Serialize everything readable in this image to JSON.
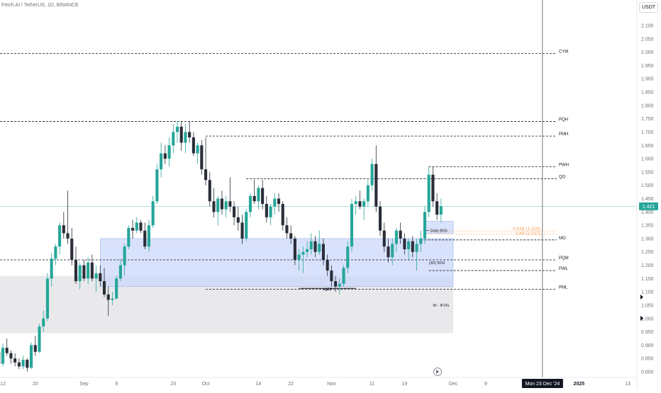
{
  "title": "Fetch.AI / TetherUS, 1D, BINANCE",
  "quote_currency": "USDT",
  "colors": {
    "up": "#26a69a",
    "down": "#2a2e39",
    "level": "#131722",
    "fib": "#f7a35c",
    "zone_blue": "#c9d6fb",
    "zone_gray": "#e3e4e7",
    "last_price": "#26a69a"
  },
  "chart_data": {
    "type": "candlestick",
    "title": "Fetch.AI / TetherUS, 1D, BINANCE",
    "y_ticks": [
      "2.100",
      "2.050",
      "2.000",
      "1.950",
      "1.900",
      "1.850",
      "1.800",
      "1.750",
      "1.700",
      "1.650",
      "1.600",
      "1.550",
      "1.500",
      "1.450",
      "1.400",
      "1.350",
      "1.300",
      "1.250",
      "1.200",
      "1.150",
      "1.100",
      "1.050",
      "1.000",
      "0.950",
      "0.900",
      "0.850",
      "0.800"
    ],
    "x_ticks": [
      {
        "label": "12",
        "date": "2024-08-12"
      },
      {
        "label": "20",
        "date": "2024-08-20"
      },
      {
        "label": "Sep",
        "date": "2024-09-01"
      },
      {
        "label": "9",
        "date": "2024-09-09"
      },
      {
        "label": "23",
        "date": "2024-09-23"
      },
      {
        "label": "Oct",
        "date": "2024-10-01"
      },
      {
        "label": "14",
        "date": "2024-10-14"
      },
      {
        "label": "22",
        "date": "2024-10-22"
      },
      {
        "label": "Nov",
        "date": "2024-11-01"
      },
      {
        "label": "11",
        "date": "2024-11-11"
      },
      {
        "label": "19",
        "date": "2024-11-19"
      },
      {
        "label": "Dec",
        "date": "2024-12-01"
      },
      {
        "label": "9",
        "date": "2024-12-09"
      },
      {
        "label": "2025",
        "date": "2025-01-01"
      },
      {
        "label": "13",
        "date": "2025-01-13"
      }
    ],
    "x_range": [
      "2024-08-12",
      "2025-01-13"
    ],
    "y_range": [
      0.79,
      2.125
    ],
    "last_price": "1.421",
    "crosshair": {
      "date": "2024-12-23",
      "label": "Mon 23 Dec '24"
    },
    "candles": [
      {
        "d": "2024-08-11",
        "o": 0.875,
        "h": 0.89,
        "l": 0.81,
        "c": 0.83
      },
      {
        "d": "2024-08-12",
        "o": 0.83,
        "h": 0.905,
        "l": 0.82,
        "c": 0.89
      },
      {
        "d": "2024-08-13",
        "o": 0.89,
        "h": 0.925,
        "l": 0.86,
        "c": 0.87
      },
      {
        "d": "2024-08-14",
        "o": 0.87,
        "h": 0.88,
        "l": 0.83,
        "c": 0.85
      },
      {
        "d": "2024-08-15",
        "o": 0.85,
        "h": 0.87,
        "l": 0.82,
        "c": 0.835
      },
      {
        "d": "2024-08-16",
        "o": 0.835,
        "h": 0.85,
        "l": 0.81,
        "c": 0.82
      },
      {
        "d": "2024-08-17",
        "o": 0.82,
        "h": 0.86,
        "l": 0.81,
        "c": 0.845
      },
      {
        "d": "2024-08-18",
        "o": 0.845,
        "h": 0.85,
        "l": 0.8,
        "c": 0.815
      },
      {
        "d": "2024-08-19",
        "o": 0.815,
        "h": 0.91,
        "l": 0.81,
        "c": 0.9
      },
      {
        "d": "2024-08-20",
        "o": 0.9,
        "h": 0.935,
        "l": 0.86,
        "c": 0.875
      },
      {
        "d": "2024-08-21",
        "o": 0.875,
        "h": 0.98,
        "l": 0.87,
        "c": 0.97
      },
      {
        "d": "2024-08-22",
        "o": 0.97,
        "h": 1.03,
        "l": 0.95,
        "c": 1.0
      },
      {
        "d": "2024-08-23",
        "o": 1.0,
        "h": 1.17,
        "l": 0.99,
        "c": 1.15
      },
      {
        "d": "2024-08-24",
        "o": 1.15,
        "h": 1.245,
        "l": 1.12,
        "c": 1.225
      },
      {
        "d": "2024-08-25",
        "o": 1.225,
        "h": 1.28,
        "l": 1.2,
        "c": 1.27
      },
      {
        "d": "2024-08-26",
        "o": 1.27,
        "h": 1.36,
        "l": 1.24,
        "c": 1.35
      },
      {
        "d": "2024-08-27",
        "o": 1.35,
        "h": 1.4,
        "l": 1.3,
        "c": 1.32
      },
      {
        "d": "2024-08-28",
        "o": 1.32,
        "h": 1.48,
        "l": 1.28,
        "c": 1.3
      },
      {
        "d": "2024-08-29",
        "o": 1.3,
        "h": 1.34,
        "l": 1.2,
        "c": 1.22
      },
      {
        "d": "2024-08-30",
        "o": 1.22,
        "h": 1.27,
        "l": 1.13,
        "c": 1.14
      },
      {
        "d": "2024-08-31",
        "o": 1.14,
        "h": 1.21,
        "l": 1.11,
        "c": 1.2
      },
      {
        "d": "2024-09-01",
        "o": 1.2,
        "h": 1.22,
        "l": 1.14,
        "c": 1.15
      },
      {
        "d": "2024-09-02",
        "o": 1.15,
        "h": 1.23,
        "l": 1.13,
        "c": 1.21
      },
      {
        "d": "2024-09-03",
        "o": 1.21,
        "h": 1.24,
        "l": 1.14,
        "c": 1.15
      },
      {
        "d": "2024-09-04",
        "o": 1.15,
        "h": 1.2,
        "l": 1.1,
        "c": 1.17
      },
      {
        "d": "2024-09-05",
        "o": 1.17,
        "h": 1.2,
        "l": 1.12,
        "c": 1.14
      },
      {
        "d": "2024-09-06",
        "o": 1.14,
        "h": 1.19,
        "l": 1.08,
        "c": 1.09
      },
      {
        "d": "2024-09-07",
        "o": 1.09,
        "h": 1.12,
        "l": 1.01,
        "c": 1.07
      },
      {
        "d": "2024-09-08",
        "o": 1.07,
        "h": 1.1,
        "l": 1.05,
        "c": 1.075
      },
      {
        "d": "2024-09-09",
        "o": 1.075,
        "h": 1.16,
        "l": 1.07,
        "c": 1.15
      },
      {
        "d": "2024-09-10",
        "o": 1.15,
        "h": 1.22,
        "l": 1.14,
        "c": 1.2
      },
      {
        "d": "2024-09-11",
        "o": 1.2,
        "h": 1.28,
        "l": 1.16,
        "c": 1.27
      },
      {
        "d": "2024-09-12",
        "o": 1.27,
        "h": 1.35,
        "l": 1.26,
        "c": 1.34
      },
      {
        "d": "2024-09-13",
        "o": 1.34,
        "h": 1.37,
        "l": 1.3,
        "c": 1.33
      },
      {
        "d": "2024-09-14",
        "o": 1.33,
        "h": 1.38,
        "l": 1.32,
        "c": 1.36
      },
      {
        "d": "2024-09-15",
        "o": 1.36,
        "h": 1.37,
        "l": 1.32,
        "c": 1.33
      },
      {
        "d": "2024-09-16",
        "o": 1.33,
        "h": 1.36,
        "l": 1.26,
        "c": 1.27
      },
      {
        "d": "2024-09-17",
        "o": 1.27,
        "h": 1.37,
        "l": 1.25,
        "c": 1.35
      },
      {
        "d": "2024-09-18",
        "o": 1.35,
        "h": 1.46,
        "l": 1.34,
        "c": 1.44
      },
      {
        "d": "2024-09-19",
        "o": 1.44,
        "h": 1.58,
        "l": 1.43,
        "c": 1.56
      },
      {
        "d": "2024-09-20",
        "o": 1.56,
        "h": 1.66,
        "l": 1.53,
        "c": 1.62
      },
      {
        "d": "2024-09-21",
        "o": 1.62,
        "h": 1.65,
        "l": 1.58,
        "c": 1.6
      },
      {
        "d": "2024-09-22",
        "o": 1.6,
        "h": 1.68,
        "l": 1.57,
        "c": 1.65
      },
      {
        "d": "2024-09-23",
        "o": 1.65,
        "h": 1.73,
        "l": 1.62,
        "c": 1.7
      },
      {
        "d": "2024-09-24",
        "o": 1.7,
        "h": 1.74,
        "l": 1.66,
        "c": 1.72
      },
      {
        "d": "2024-09-25",
        "o": 1.72,
        "h": 1.74,
        "l": 1.63,
        "c": 1.66
      },
      {
        "d": "2024-09-26",
        "o": 1.66,
        "h": 1.73,
        "l": 1.62,
        "c": 1.7
      },
      {
        "d": "2024-09-27",
        "o": 1.7,
        "h": 1.74,
        "l": 1.66,
        "c": 1.68
      },
      {
        "d": "2024-09-28",
        "o": 1.68,
        "h": 1.7,
        "l": 1.61,
        "c": 1.62
      },
      {
        "d": "2024-09-29",
        "o": 1.62,
        "h": 1.66,
        "l": 1.58,
        "c": 1.65
      },
      {
        "d": "2024-09-30",
        "o": 1.65,
        "h": 1.67,
        "l": 1.54,
        "c": 1.56
      },
      {
        "d": "2024-10-01",
        "o": 1.56,
        "h": 1.68,
        "l": 1.5,
        "c": 1.52
      },
      {
        "d": "2024-10-02",
        "o": 1.52,
        "h": 1.55,
        "l": 1.42,
        "c": 1.44
      },
      {
        "d": "2024-10-03",
        "o": 1.44,
        "h": 1.49,
        "l": 1.38,
        "c": 1.4
      },
      {
        "d": "2024-10-04",
        "o": 1.4,
        "h": 1.46,
        "l": 1.35,
        "c": 1.45
      },
      {
        "d": "2024-10-05",
        "o": 1.45,
        "h": 1.48,
        "l": 1.39,
        "c": 1.41
      },
      {
        "d": "2024-10-06",
        "o": 1.41,
        "h": 1.46,
        "l": 1.38,
        "c": 1.44
      },
      {
        "d": "2024-10-07",
        "o": 1.44,
        "h": 1.53,
        "l": 1.4,
        "c": 1.42
      },
      {
        "d": "2024-10-08",
        "o": 1.42,
        "h": 1.44,
        "l": 1.35,
        "c": 1.38
      },
      {
        "d": "2024-10-09",
        "o": 1.38,
        "h": 1.42,
        "l": 1.33,
        "c": 1.36
      },
      {
        "d": "2024-10-10",
        "o": 1.36,
        "h": 1.39,
        "l": 1.28,
        "c": 1.3
      },
      {
        "d": "2024-10-11",
        "o": 1.3,
        "h": 1.41,
        "l": 1.29,
        "c": 1.4
      },
      {
        "d": "2024-10-12",
        "o": 1.4,
        "h": 1.47,
        "l": 1.38,
        "c": 1.46
      },
      {
        "d": "2024-10-13",
        "o": 1.46,
        "h": 1.52,
        "l": 1.43,
        "c": 1.44
      },
      {
        "d": "2024-10-14",
        "o": 1.44,
        "h": 1.5,
        "l": 1.41,
        "c": 1.49
      },
      {
        "d": "2024-10-15",
        "o": 1.49,
        "h": 1.52,
        "l": 1.41,
        "c": 1.43
      },
      {
        "d": "2024-10-16",
        "o": 1.43,
        "h": 1.46,
        "l": 1.36,
        "c": 1.38
      },
      {
        "d": "2024-10-17",
        "o": 1.38,
        "h": 1.43,
        "l": 1.35,
        "c": 1.42
      },
      {
        "d": "2024-10-18",
        "o": 1.42,
        "h": 1.47,
        "l": 1.39,
        "c": 1.45
      },
      {
        "d": "2024-10-19",
        "o": 1.45,
        "h": 1.47,
        "l": 1.4,
        "c": 1.43
      },
      {
        "d": "2024-10-20",
        "o": 1.43,
        "h": 1.44,
        "l": 1.33,
        "c": 1.35
      },
      {
        "d": "2024-10-21",
        "o": 1.35,
        "h": 1.38,
        "l": 1.3,
        "c": 1.32
      },
      {
        "d": "2024-10-22",
        "o": 1.32,
        "h": 1.35,
        "l": 1.28,
        "c": 1.3
      },
      {
        "d": "2024-10-23",
        "o": 1.3,
        "h": 1.31,
        "l": 1.2,
        "c": 1.22
      },
      {
        "d": "2024-10-24",
        "o": 1.22,
        "h": 1.26,
        "l": 1.18,
        "c": 1.24
      },
      {
        "d": "2024-10-25",
        "o": 1.24,
        "h": 1.27,
        "l": 1.17,
        "c": 1.25
      },
      {
        "d": "2024-10-26",
        "o": 1.25,
        "h": 1.29,
        "l": 1.23,
        "c": 1.26
      },
      {
        "d": "2024-10-27",
        "o": 1.26,
        "h": 1.32,
        "l": 1.24,
        "c": 1.29
      },
      {
        "d": "2024-10-28",
        "o": 1.29,
        "h": 1.31,
        "l": 1.23,
        "c": 1.25
      },
      {
        "d": "2024-10-29",
        "o": 1.25,
        "h": 1.33,
        "l": 1.24,
        "c": 1.28
      },
      {
        "d": "2024-10-30",
        "o": 1.28,
        "h": 1.3,
        "l": 1.2,
        "c": 1.22
      },
      {
        "d": "2024-10-31",
        "o": 1.22,
        "h": 1.24,
        "l": 1.16,
        "c": 1.18
      },
      {
        "d": "2024-11-01",
        "o": 1.18,
        "h": 1.2,
        "l": 1.12,
        "c": 1.14
      },
      {
        "d": "2024-11-02",
        "o": 1.14,
        "h": 1.16,
        "l": 1.1,
        "c": 1.12
      },
      {
        "d": "2024-11-03",
        "o": 1.12,
        "h": 1.15,
        "l": 1.09,
        "c": 1.13
      },
      {
        "d": "2024-11-04",
        "o": 1.13,
        "h": 1.2,
        "l": 1.12,
        "c": 1.19
      },
      {
        "d": "2024-11-05",
        "o": 1.19,
        "h": 1.29,
        "l": 1.17,
        "c": 1.27
      },
      {
        "d": "2024-11-06",
        "o": 1.27,
        "h": 1.45,
        "l": 1.25,
        "c": 1.43
      },
      {
        "d": "2024-11-07",
        "o": 1.43,
        "h": 1.46,
        "l": 1.39,
        "c": 1.44
      },
      {
        "d": "2024-11-08",
        "o": 1.44,
        "h": 1.48,
        "l": 1.41,
        "c": 1.42
      },
      {
        "d": "2024-11-09",
        "o": 1.42,
        "h": 1.45,
        "l": 1.37,
        "c": 1.44
      },
      {
        "d": "2024-11-10",
        "o": 1.44,
        "h": 1.52,
        "l": 1.42,
        "c": 1.5
      },
      {
        "d": "2024-11-11",
        "o": 1.5,
        "h": 1.6,
        "l": 1.48,
        "c": 1.58
      },
      {
        "d": "2024-11-12",
        "o": 1.58,
        "h": 1.65,
        "l": 1.4,
        "c": 1.42
      },
      {
        "d": "2024-11-13",
        "o": 1.42,
        "h": 1.44,
        "l": 1.31,
        "c": 1.33
      },
      {
        "d": "2024-11-14",
        "o": 1.33,
        "h": 1.36,
        "l": 1.25,
        "c": 1.27
      },
      {
        "d": "2024-11-15",
        "o": 1.27,
        "h": 1.3,
        "l": 1.21,
        "c": 1.23
      },
      {
        "d": "2024-11-16",
        "o": 1.23,
        "h": 1.3,
        "l": 1.2,
        "c": 1.28
      },
      {
        "d": "2024-11-17",
        "o": 1.28,
        "h": 1.34,
        "l": 1.25,
        "c": 1.33
      },
      {
        "d": "2024-11-18",
        "o": 1.33,
        "h": 1.36,
        "l": 1.28,
        "c": 1.3
      },
      {
        "d": "2024-11-19",
        "o": 1.3,
        "h": 1.32,
        "l": 1.24,
        "c": 1.26
      },
      {
        "d": "2024-11-20",
        "o": 1.26,
        "h": 1.3,
        "l": 1.22,
        "c": 1.29
      },
      {
        "d": "2024-11-21",
        "o": 1.29,
        "h": 1.31,
        "l": 1.23,
        "c": 1.25
      },
      {
        "d": "2024-11-22",
        "o": 1.25,
        "h": 1.3,
        "l": 1.18,
        "c": 1.28
      },
      {
        "d": "2024-11-23",
        "o": 1.28,
        "h": 1.33,
        "l": 1.25,
        "c": 1.3
      },
      {
        "d": "2024-11-24",
        "o": 1.3,
        "h": 1.42,
        "l": 1.28,
        "c": 1.4
      },
      {
        "d": "2024-11-25",
        "o": 1.4,
        "h": 1.57,
        "l": 1.38,
        "c": 1.54
      },
      {
        "d": "2024-11-26",
        "o": 1.54,
        "h": 1.57,
        "l": 1.42,
        "c": 1.44
      },
      {
        "d": "2024-11-27",
        "o": 1.44,
        "h": 1.47,
        "l": 1.37,
        "c": 1.39
      },
      {
        "d": "2024-11-28",
        "o": 1.39,
        "h": 1.45,
        "l": 1.36,
        "c": 1.421
      }
    ],
    "levels": [
      {
        "label": "CYM",
        "value": 1.995,
        "from": "2024-08-10"
      },
      {
        "label": "PQH",
        "value": 1.74,
        "from": "2024-08-10"
      },
      {
        "label": "PMH",
        "value": 1.685,
        "from": "2024-10-01"
      },
      {
        "label": "PWH",
        "value": 1.57,
        "from": "2024-11-25"
      },
      {
        "label": "QO",
        "value": 1.525,
        "from": "2024-10-11"
      },
      {
        "label": "MO",
        "value": 1.295,
        "from": "2024-11-23"
      },
      {
        "label": "PQM",
        "value": 1.22,
        "from": "2024-08-10"
      },
      {
        "label": "PWL",
        "value": 1.18,
        "from": "2024-11-25"
      },
      {
        "label": "PML",
        "value": 1.11,
        "from": "2024-10-01"
      }
    ],
    "zones": [
      {
        "name": "blue",
        "from": "2024-09-05",
        "to": "2024-12-01",
        "top": 1.3,
        "bottom": 1.12
      },
      {
        "name": "gray",
        "from": "2024-08-10",
        "to": "2024-12-01",
        "top": 1.16,
        "bottom": 0.945
      },
      {
        "name": "daily-bisi",
        "from": "2024-11-24",
        "to": "2024-12-01",
        "top": 1.365,
        "bottom": 1.32
      }
    ],
    "fib_lines": [
      {
        "label": "0.618 (1.329)",
        "value": 1.329
      },
      {
        "label": "0.66 (1.317)",
        "value": 1.317
      }
    ],
    "annotations": [
      {
        "text": "Daily BISI",
        "date": "2024-11-25",
        "value": 1.33
      },
      {
        "text": "(3D) BISI",
        "date": "2024-11-25",
        "value": 1.21
      },
      {
        "text": "W - IFVG",
        "date": "2024-11-26",
        "value": 1.05
      },
      {
        "text": "+SFP",
        "date": "2024-10-31",
        "value": 1.11
      }
    ],
    "sfp_line": {
      "from": "2024-10-24",
      "to": "2024-11-07",
      "value": 1.113
    }
  }
}
